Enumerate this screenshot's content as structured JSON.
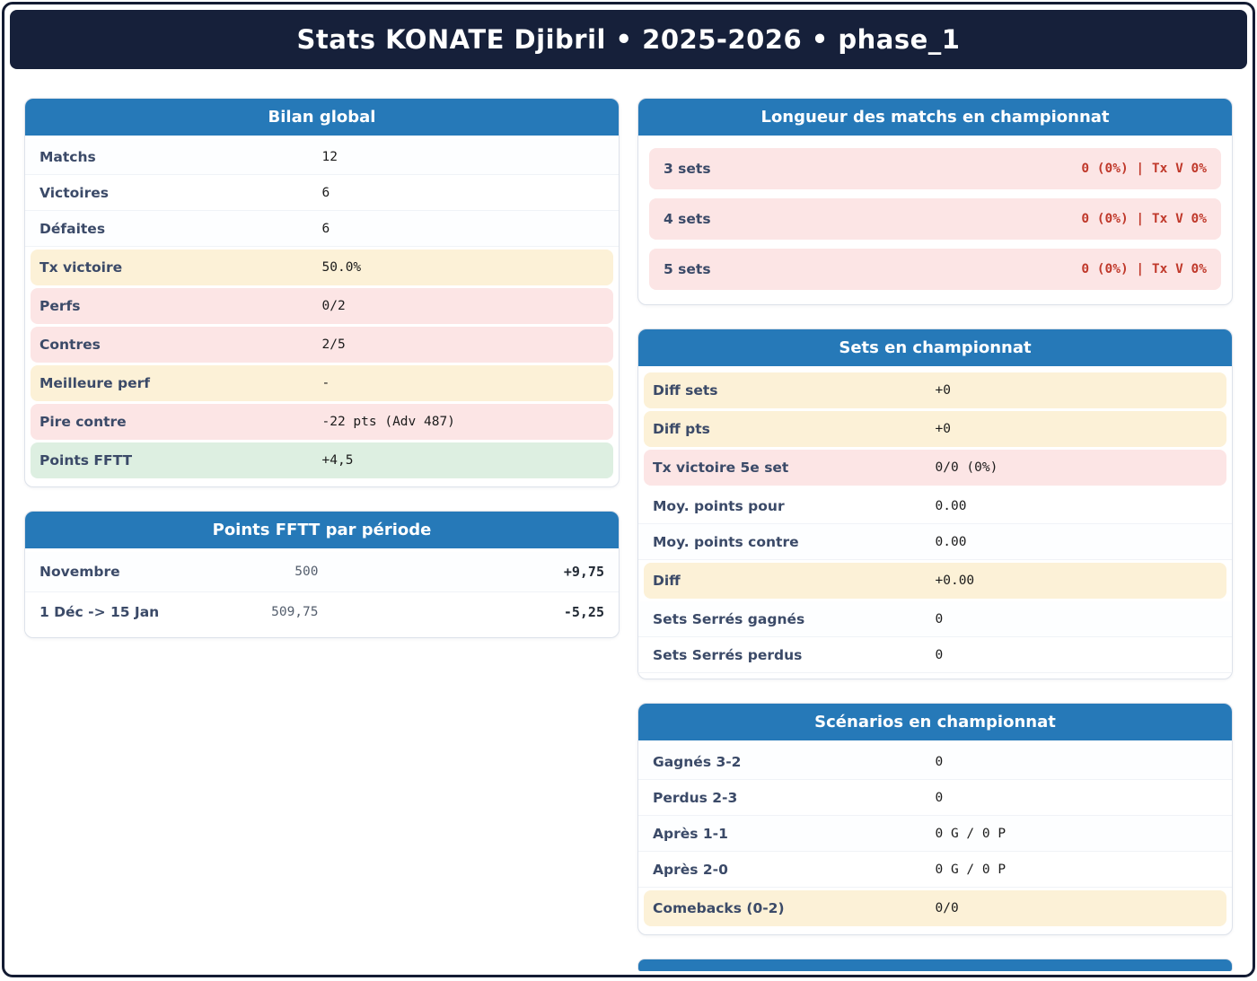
{
  "header": {
    "title": "Stats KONATE Djibril • 2025-2026 • phase_1"
  },
  "colors": {
    "navy": "#16203a",
    "accent_blue": "#2679b8",
    "highlight_yellow": "#fcf1d7",
    "highlight_pink": "#fce5e5",
    "highlight_green": "#ddefe1",
    "negative_text": "#c0392b",
    "label_slate": "#3b4a68"
  },
  "bilan_global": {
    "title": "Bilan global",
    "rows": [
      {
        "label": "Matchs",
        "value": "12",
        "highlight": "none"
      },
      {
        "label": "Victoires",
        "value": "6",
        "highlight": "none"
      },
      {
        "label": "Défaites",
        "value": "6",
        "highlight": "none"
      },
      {
        "label": "Tx victoire",
        "value": "50.0%",
        "highlight": "yellow"
      },
      {
        "label": "Perfs",
        "value": "0/2",
        "highlight": "pink"
      },
      {
        "label": "Contres",
        "value": "2/5",
        "highlight": "pink"
      },
      {
        "label": "Meilleure perf",
        "value": "-",
        "highlight": "yellow"
      },
      {
        "label": "Pire contre",
        "value": "-22 pts (Adv 487)",
        "highlight": "pink"
      },
      {
        "label": "Points FFTT",
        "value": "+4,5",
        "highlight": "green"
      }
    ]
  },
  "points_fftt": {
    "title": "Points FFTT par période",
    "rows": [
      {
        "label": "Novembre",
        "points": "500",
        "delta": "+9,75"
      },
      {
        "label": "1 Déc -> 15 Jan",
        "points": "509,75",
        "delta": "-5,25"
      }
    ]
  },
  "longueur_matchs": {
    "title": "Longueur des matchs en championnat",
    "rows": [
      {
        "label": "3 sets",
        "value": "0 (0%) | Tx V 0%"
      },
      {
        "label": "4 sets",
        "value": "0 (0%) | Tx V 0%"
      },
      {
        "label": "5 sets",
        "value": "0 (0%) | Tx V 0%"
      }
    ]
  },
  "sets_championnat": {
    "title": "Sets en championnat",
    "rows": [
      {
        "label": "Diff sets",
        "value": "+0",
        "highlight": "yellow"
      },
      {
        "label": "Diff pts",
        "value": "+0",
        "highlight": "yellow"
      },
      {
        "label": "Tx victoire 5e set",
        "value": "0/0  (0%)",
        "highlight": "pink"
      },
      {
        "label": "Moy. points pour",
        "value": "0.00",
        "highlight": "none"
      },
      {
        "label": "Moy. points contre",
        "value": "0.00",
        "highlight": "none"
      },
      {
        "label": "Diff",
        "value": "+0.00",
        "highlight": "yellow"
      },
      {
        "label": "Sets Serrés gagnés",
        "value": "0",
        "highlight": "none"
      },
      {
        "label": "Sets Serrés perdus",
        "value": "0",
        "highlight": "none"
      }
    ]
  },
  "scenarios": {
    "title": "Scénarios en championnat",
    "rows": [
      {
        "label": "Gagnés 3-2",
        "value": "0",
        "highlight": "none"
      },
      {
        "label": "Perdus 2-3",
        "value": "0",
        "highlight": "none"
      },
      {
        "label": "Après 1-1",
        "value": "0 G / 0 P",
        "highlight": "none"
      },
      {
        "label": "Après 2-0",
        "value": "0 G / 0 P",
        "highlight": "none"
      },
      {
        "label": "Comebacks (0-2)",
        "value": "0/0",
        "highlight": "yellow"
      }
    ]
  }
}
